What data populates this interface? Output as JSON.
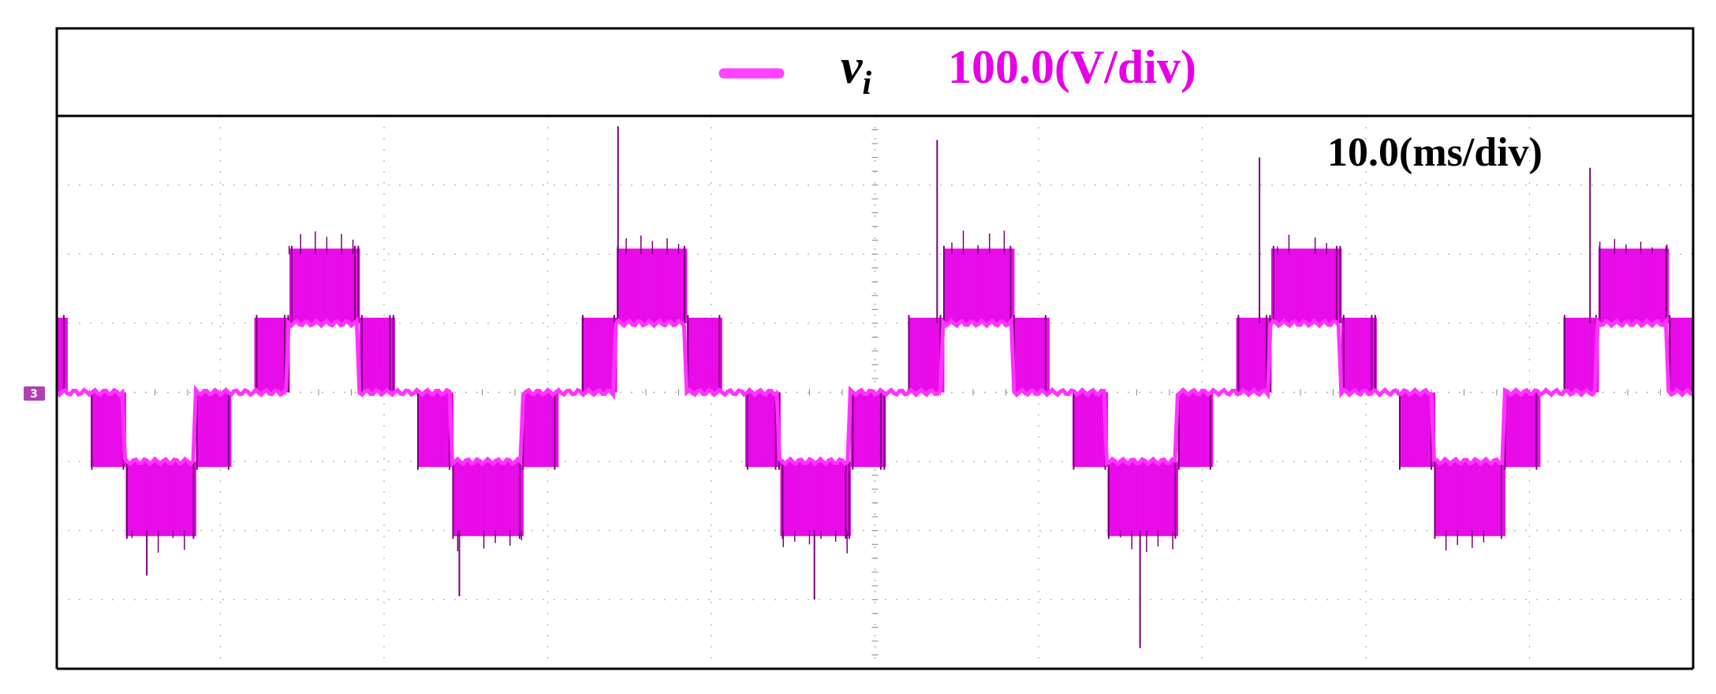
{
  "colors": {
    "trace": "#e600e6",
    "trace_dark": "#7a007a",
    "grid": "#b0b0b0",
    "frame": "#000000",
    "background": "#ffffff"
  },
  "legend": {
    "series_symbol": "v",
    "series_subscript": "i",
    "scale": "100.0(V/div)"
  },
  "time_scale": "10.0(ms/div)",
  "channel_marker": "3",
  "chart_data": {
    "type": "line",
    "title": "",
    "xlabel": "",
    "ylabel": "",
    "x_unit": "ms",
    "y_unit": "V",
    "x_per_div": 10.0,
    "y_per_div": 100.0,
    "xlim": [
      0,
      100
    ],
    "ylim": [
      -400,
      400
    ],
    "grid": true,
    "legend_position": "top",
    "series": [
      {
        "name": "v_i",
        "waveform": "multilevel staircase",
        "fundamental_period_ms": 20,
        "start_phase_ms": 1.3,
        "levels_V": [
          0,
          100,
          200
        ],
        "step_boundaries_ms": [
          1.3,
          5.1,
          9.1,
          11.3,
          15.1,
          19.1,
          21.3
        ],
        "level_sequence_V": [
          -100,
          -200,
          -100,
          0,
          100,
          200,
          100,
          0
        ],
        "switching_band_V": 35,
        "spikes": [
          {
            "x": 34.3,
            "y": 385
          },
          {
            "x": 53.8,
            "y": 365
          },
          {
            "x": 73.5,
            "y": 340
          },
          {
            "x": 93.7,
            "y": 325
          },
          {
            "x": 66.2,
            "y": -370
          },
          {
            "x": 5.5,
            "y": -265
          },
          {
            "x": 46.3,
            "y": -300
          },
          {
            "x": 24.6,
            "y": -295
          }
        ]
      }
    ]
  }
}
